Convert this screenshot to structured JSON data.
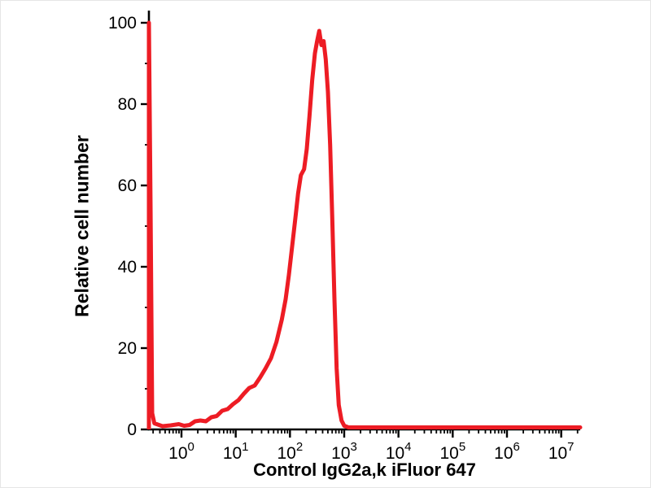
{
  "figure": {
    "background": "#ffffff"
  },
  "chart_data": {
    "type": "line",
    "subtype": "flow-cytometry-histogram",
    "title": "",
    "xlabel": "Control IgG2a,k iFluor 647",
    "ylabel": "Relative cell number",
    "x_scale": "log10",
    "x_range_log10": [
      -0.6,
      7.35
    ],
    "x_major_tick_exponents": [
      0,
      1,
      2,
      3,
      4,
      5,
      6,
      7
    ],
    "x_tick_base": "10",
    "x_minor_ticks": "log sub-decades 2-9",
    "ylim": [
      0,
      100
    ],
    "y_major_ticks": [
      0,
      20,
      40,
      60,
      80,
      100
    ],
    "y_minor_tick_step": 10,
    "grid": false,
    "legend": "none",
    "axis_color": "#000000",
    "series": [
      {
        "label": "red-histogram",
        "color": "#ed1c24",
        "stroke_width": 5,
        "off_scale_spike_at_left_edge": true,
        "points_log10x_y": [
          [
            -0.6,
            0
          ],
          [
            -0.6,
            100
          ],
          [
            -0.57,
            55
          ],
          [
            -0.54,
            4
          ],
          [
            -0.5,
            1.5
          ],
          [
            -0.35,
            0.8
          ],
          [
            -0.2,
            1.0
          ],
          [
            -0.05,
            1.3
          ],
          [
            0.05,
            0.9
          ],
          [
            0.15,
            1.1
          ],
          [
            0.25,
            2.0
          ],
          [
            0.35,
            2.2
          ],
          [
            0.45,
            2.0
          ],
          [
            0.55,
            3.0
          ],
          [
            0.65,
            3.3
          ],
          [
            0.75,
            4.6
          ],
          [
            0.85,
            5.0
          ],
          [
            0.95,
            6.2
          ],
          [
            1.05,
            7.2
          ],
          [
            1.15,
            8.8
          ],
          [
            1.25,
            10.2
          ],
          [
            1.35,
            10.8
          ],
          [
            1.45,
            12.8
          ],
          [
            1.55,
            15.0
          ],
          [
            1.65,
            17.5
          ],
          [
            1.75,
            21.5
          ],
          [
            1.85,
            27.0
          ],
          [
            1.92,
            32.0
          ],
          [
            1.98,
            38.0
          ],
          [
            2.04,
            45.0
          ],
          [
            2.1,
            52.0
          ],
          [
            2.15,
            58.0
          ],
          [
            2.2,
            62.5
          ],
          [
            2.26,
            64.0
          ],
          [
            2.31,
            69.0
          ],
          [
            2.36,
            77.0
          ],
          [
            2.41,
            86.0
          ],
          [
            2.46,
            92.5
          ],
          [
            2.5,
            95.5
          ],
          [
            2.54,
            98.0
          ],
          [
            2.58,
            94.5
          ],
          [
            2.62,
            95.5
          ],
          [
            2.66,
            91.0
          ],
          [
            2.7,
            83.0
          ],
          [
            2.74,
            70.0
          ],
          [
            2.78,
            52.0
          ],
          [
            2.82,
            32.0
          ],
          [
            2.86,
            15.0
          ],
          [
            2.9,
            6.0
          ],
          [
            2.95,
            2.2
          ],
          [
            3.0,
            0.9
          ],
          [
            3.08,
            0.5
          ],
          [
            3.3,
            0.5
          ],
          [
            3.7,
            0.5
          ],
          [
            4.2,
            0.5
          ],
          [
            4.8,
            0.5
          ],
          [
            5.5,
            0.5
          ],
          [
            6.2,
            0.5
          ],
          [
            6.9,
            0.5
          ],
          [
            7.35,
            0.5
          ]
        ]
      }
    ]
  }
}
